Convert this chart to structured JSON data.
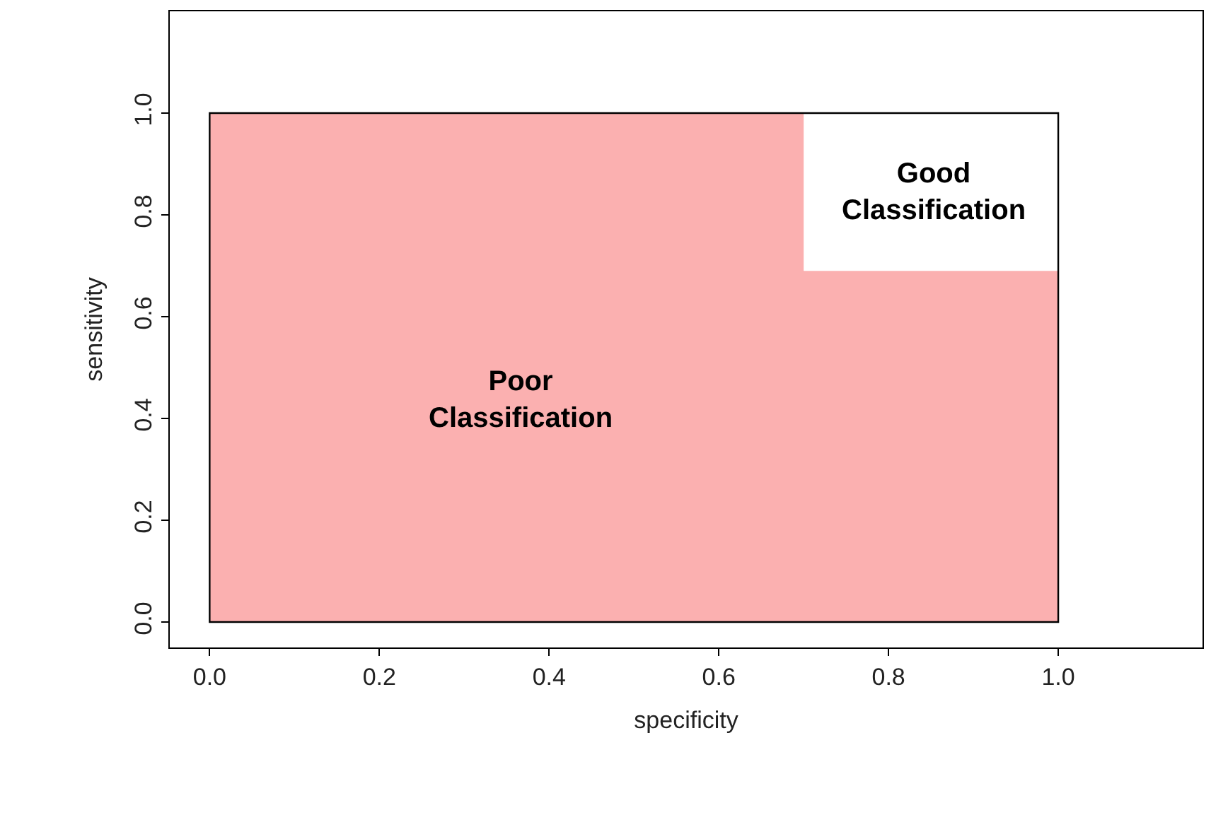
{
  "chart_data": {
    "type": "area",
    "xlabel": "specificity",
    "ylabel": "sensitivity",
    "series": [
      {
        "color": "#fbb0b0",
        "x": [
          0,
          0.7,
          0.7,
          1
        ],
        "values": [
          1,
          1,
          0.69,
          0.69
        ]
      }
    ],
    "xlim": [
      -0.047,
      1.17
    ],
    "ylim": [
      -0.05,
      1.2
    ],
    "xticks": [
      {
        "value": 0,
        "label": "0.0"
      },
      0.2,
      0.4,
      0.6,
      0.8,
      {
        "value": 1,
        "label": "1.0"
      }
    ],
    "yticks": [
      {
        "value": 0,
        "label": "0.0"
      },
      0.2,
      0.4,
      0.6,
      0.8,
      {
        "value": 1,
        "label": "1.0"
      }
    ],
    "annotations": [
      "Poor\nClassification",
      "Good\nClassification"
    ]
  }
}
